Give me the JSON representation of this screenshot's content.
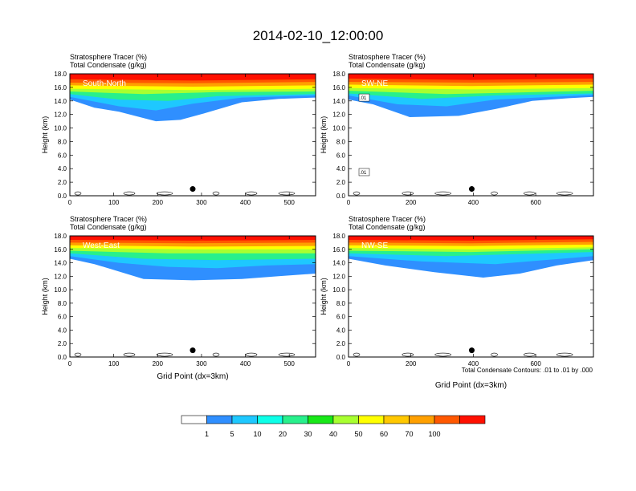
{
  "title": "2014-02-10_12:00:00",
  "colors": {
    "levels": [
      "#ffffff",
      "#2f8fff",
      "#1ec8ff",
      "#0dffe8",
      "#28f08c",
      "#18e818",
      "#a8ff30",
      "#ffff00",
      "#ffc800",
      "#ffa000",
      "#ff5800",
      "#ff1000"
    ]
  },
  "colorbar": {
    "labels": [
      "1",
      "5",
      "10",
      "20",
      "30",
      "40",
      "50",
      "60",
      "70",
      "100"
    ]
  },
  "footer": {
    "contour_note": "Total Condensate Contours: .01 to .01 by .000"
  },
  "chart_data": [
    {
      "type": "heatmap",
      "panel_label": "South-North",
      "line1_label": "Stratosphere Tracer   (%)",
      "line2_label": "Total Condensate   (g/kg)",
      "ylabel": "Height (km)",
      "xlabel": "",
      "ylim": [
        0,
        18
      ],
      "xlim": [
        0,
        560
      ],
      "xticks": [
        "0",
        "100",
        "200",
        "300",
        "400",
        "500"
      ],
      "xtick_values": [
        0,
        100,
        200,
        300,
        400,
        500
      ],
      "yticks": [
        "0.0",
        "2.0",
        "4.0",
        "6.0",
        "8.0",
        "10.0",
        "12.0",
        "14.0",
        "16.0",
        "18.0"
      ],
      "marker": {
        "x": 280,
        "y": 1.0
      },
      "contour_labels": []
    },
    {
      "type": "heatmap",
      "panel_label": "SW-NE",
      "line1_label": "Stratosphere Tracer   (%)",
      "line2_label": "Total Condensate   (g/kg)",
      "ylabel": "Height (km)",
      "xlabel": "",
      "ylim": [
        0,
        18
      ],
      "xlim": [
        0,
        785
      ],
      "xticks": [
        "0",
        "200",
        "400",
        "600"
      ],
      "xtick_values": [
        0,
        200,
        400,
        600
      ],
      "yticks": [
        "0.0",
        "2.0",
        "4.0",
        "6.0",
        "8.0",
        "10.0",
        "12.0",
        "14.0",
        "16.0",
        "18.0"
      ],
      "marker": {
        "x": 395,
        "y": 1.0
      },
      "contour_labels": [
        ".01",
        ".01"
      ]
    },
    {
      "type": "heatmap",
      "panel_label": "West-East",
      "line1_label": "Stratosphere Tracer   (%)",
      "line2_label": "Total Condensate   (g/kg)",
      "ylabel": "Height (km)",
      "xlabel": "Grid Point (dx=3km)",
      "ylim": [
        0,
        18
      ],
      "xlim": [
        0,
        560
      ],
      "xticks": [
        "0",
        "100",
        "200",
        "300",
        "400",
        "500"
      ],
      "xtick_values": [
        0,
        100,
        200,
        300,
        400,
        500
      ],
      "yticks": [
        "0.0",
        "2.0",
        "4.0",
        "6.0",
        "8.0",
        "10.0",
        "12.0",
        "14.0",
        "16.0",
        "18.0"
      ],
      "marker": {
        "x": 280,
        "y": 1.0
      },
      "contour_labels": []
    },
    {
      "type": "heatmap",
      "panel_label": "NW-SE",
      "line1_label": "Stratosphere Tracer   (%)",
      "line2_label": "Total Condensate   (g/kg)",
      "ylabel": "Height (km)",
      "xlabel": "Grid Point (dx=3km)",
      "ylim": [
        0,
        18
      ],
      "xlim": [
        0,
        785
      ],
      "xticks": [
        "0",
        "200",
        "400",
        "600"
      ],
      "xtick_values": [
        0,
        200,
        400,
        600
      ],
      "yticks": [
        "0.0",
        "2.0",
        "4.0",
        "6.0",
        "8.0",
        "10.0",
        "12.0",
        "14.0",
        "16.0",
        "18.0"
      ],
      "marker": {
        "x": 395,
        "y": 1.0
      },
      "contour_labels": []
    }
  ]
}
